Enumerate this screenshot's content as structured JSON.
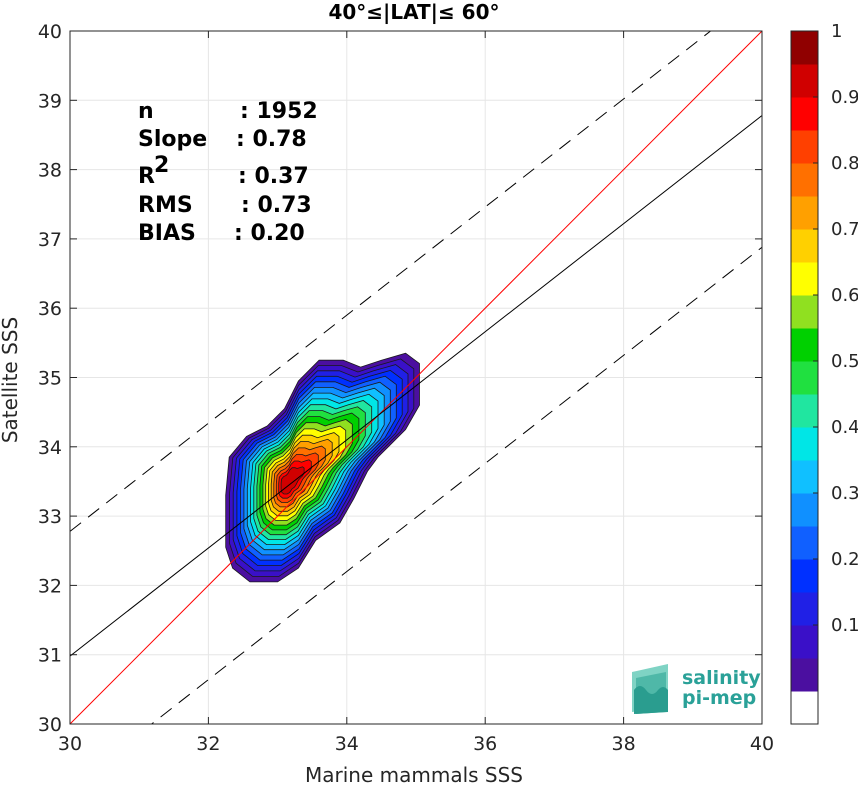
{
  "chart_data": {
    "type": "scatter",
    "title": "40°≤|LAT|≤ 60°",
    "xlabel": "Marine mammals SSS",
    "ylabel": "Satellite SSS",
    "xlim": [
      30,
      40
    ],
    "ylim": [
      30,
      40
    ],
    "xticks": [
      "30",
      "32",
      "34",
      "36",
      "38",
      "40"
    ],
    "yticks": [
      "30",
      "31",
      "32",
      "33",
      "34",
      "35",
      "36",
      "37",
      "38",
      "39",
      "40"
    ],
    "grid": true,
    "stats": [
      {
        "label": "n",
        "value": ": 1952"
      },
      {
        "label": "Slope",
        "value": ": 0.78"
      },
      {
        "label": "R",
        "sup": "2",
        "value": ": 0.37"
      },
      {
        "label": "RMS",
        "value": ": 0.73"
      },
      {
        "label": "BIAS",
        "value": ": 0.20"
      }
    ],
    "lines": [
      {
        "name": "one-to-one",
        "color": "#ff0000",
        "style": "solid",
        "slope": 1.0,
        "intercept": 0.0
      },
      {
        "name": "regression",
        "color": "#000000",
        "style": "solid",
        "slope": 0.78,
        "intercept": 7.58
      },
      {
        "name": "upper-bound",
        "color": "#000000",
        "style": "dashed",
        "slope": 0.78,
        "intercept": 9.38
      },
      {
        "name": "lower-bound",
        "color": "#000000",
        "style": "dashed",
        "slope": 0.78,
        "intercept": 5.68
      }
    ],
    "density_peak": {
      "x": 32.9,
      "y": 33.25
    },
    "colorbar": {
      "ticks": [
        "0.1",
        "0.2",
        "0.3",
        "0.4",
        "0.5",
        "0.6",
        "0.7",
        "0.8",
        "0.9",
        "1"
      ],
      "range": [
        0,
        1
      ],
      "colors": [
        "#ffffff",
        "#4b0fa0",
        "#3a10c8",
        "#2020e6",
        "#0030ff",
        "#1060ff",
        "#1090ff",
        "#10c0ff",
        "#00e6e6",
        "#20e6a0",
        "#20e040",
        "#00d000",
        "#90e020",
        "#ffff00",
        "#ffd000",
        "#ffa000",
        "#ff7000",
        "#ff4000",
        "#ff0000",
        "#d00000",
        "#900000"
      ]
    },
    "logo": {
      "line1": "salinity",
      "line2": "pi-mep"
    }
  }
}
